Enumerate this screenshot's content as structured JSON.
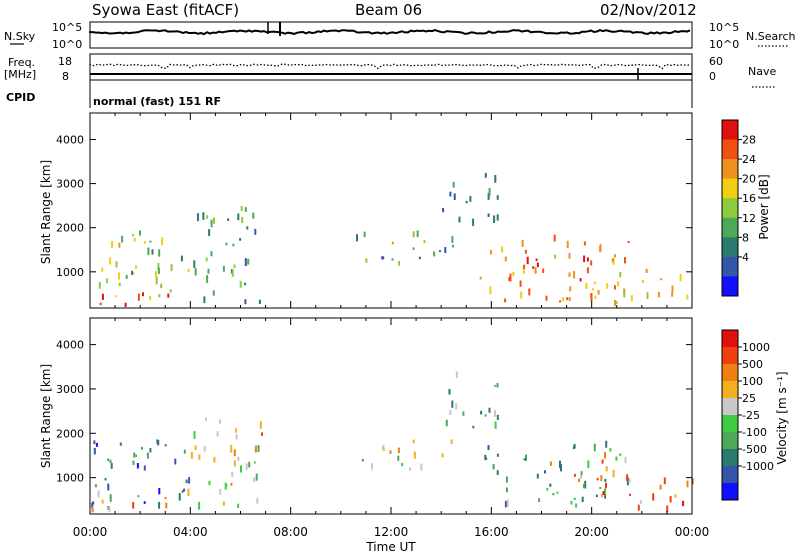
{
  "header": {
    "station": "Syowa East (fitACF)",
    "beam": "Beam 06",
    "date": "02/Nov/2012"
  },
  "params": {
    "nsky_label": "N.Sky",
    "nsearch_label": "N.Search",
    "freq_label": "Freq.",
    "freq_unit": "[MHz]",
    "nave_label": "Nave",
    "cpid_label": "CPID",
    "cpid_text": "normal (fast) 151 RF",
    "noise_left_ticks": [
      "10^5",
      "10^0"
    ],
    "noise_right_ticks": [
      "10^5",
      "10^0"
    ],
    "freq_ticks": [
      "18",
      "8"
    ],
    "nave_ticks": [
      "60",
      "0"
    ]
  },
  "chart_data": [
    {
      "type": "heatmap",
      "name": "power",
      "ylabel": "Slant Range [km]",
      "xlabel": "Time UT",
      "xlim": [
        0,
        24
      ],
      "ylim": [
        180,
        4600
      ],
      "yticks": [
        1000,
        2000,
        3000,
        4000
      ],
      "xtick_labels": [
        "00:00",
        "04:00",
        "08:00",
        "12:00",
        "16:00",
        "20:00",
        "00:00"
      ],
      "colorbar": {
        "label": "Power [dB]",
        "ticks": [
          "28",
          "24",
          "20",
          "16",
          "12",
          "8",
          "4"
        ],
        "colors": [
          "#1010ff",
          "#3355aa",
          "#2c7a6e",
          "#4ea85a",
          "#8ccc3c",
          "#f0d010",
          "#f09020",
          "#f05010",
          "#e01010"
        ]
      },
      "regions": [
        {
          "t": [
            0.0,
            4.0
          ],
          "r": [
            200,
            1900
          ],
          "level": 0.5
        },
        {
          "t": [
            0.0,
            4.0
          ],
          "r": [
            200,
            500
          ],
          "level": 0.92
        },
        {
          "t": [
            4.0,
            6.8
          ],
          "r": [
            200,
            2400
          ],
          "level": 0.35
        },
        {
          "t": [
            5.5,
            6.5
          ],
          "r": [
            1800,
            2400
          ],
          "level": 0.45
        },
        {
          "t": [
            10.5,
            14.5
          ],
          "r": [
            1100,
            1800
          ],
          "level": 0.32
        },
        {
          "t": [
            11.8,
            14.0
          ],
          "r": [
            1550,
            1800
          ],
          "level": 0.65
        },
        {
          "t": [
            14.0,
            16.3
          ],
          "r": [
            2000,
            3300
          ],
          "level": 0.28
        },
        {
          "t": [
            15.5,
            21.5
          ],
          "r": [
            300,
            1700
          ],
          "level": 0.72
        },
        {
          "t": [
            17.0,
            20.0
          ],
          "r": [
            700,
            1400
          ],
          "level": 0.9
        },
        {
          "t": [
            20.0,
            24.0
          ],
          "r": [
            200,
            1000
          ],
          "level": 0.6
        }
      ]
    },
    {
      "type": "heatmap",
      "name": "velocity",
      "ylabel": "Slant Range [km]",
      "xlabel": "Time UT",
      "xlim": [
        0,
        24
      ],
      "ylim": [
        180,
        4600
      ],
      "yticks": [
        1000,
        2000,
        3000,
        4000
      ],
      "xtick_labels": [
        "00:00",
        "04:00",
        "08:00",
        "12:00",
        "16:00",
        "20:00",
        "00:00"
      ],
      "colorbar": {
        "label": "Velocity [m s⁻¹]",
        "ticks": [
          "1000",
          "500",
          "100",
          "25",
          "-25",
          "-100",
          "-500",
          "-1000"
        ],
        "colors": [
          "#1010ff",
          "#3355aa",
          "#2c7a6e",
          "#4ea85a",
          "#40cc40",
          "#c8c8c8",
          "#f0b020",
          "#f08010",
          "#f04010",
          "#e01010"
        ]
      },
      "regions": [
        {
          "t": [
            0.0,
            4.0
          ],
          "r": [
            200,
            1900
          ],
          "level": 0.25
        },
        {
          "t": [
            0.0,
            4.0
          ],
          "r": [
            200,
            600
          ],
          "level": 0.65
        },
        {
          "t": [
            4.0,
            6.8
          ],
          "r": [
            200,
            2400
          ],
          "level": 0.55
        },
        {
          "t": [
            6.5,
            7.2
          ],
          "r": [
            1500,
            2200
          ],
          "level": 0.8
        },
        {
          "t": [
            10.5,
            14.5
          ],
          "r": [
            1100,
            1800
          ],
          "level": 0.55
        },
        {
          "t": [
            14.0,
            16.3
          ],
          "r": [
            2000,
            3300
          ],
          "level": 0.4
        },
        {
          "t": [
            15.5,
            21.5
          ],
          "r": [
            300,
            1700
          ],
          "level": 0.35
        },
        {
          "t": [
            18.0,
            21.0
          ],
          "r": [
            900,
            1500
          ],
          "level": 0.7
        },
        {
          "t": [
            20.0,
            24.0
          ],
          "r": [
            200,
            1000
          ],
          "level": 0.75
        }
      ]
    }
  ]
}
